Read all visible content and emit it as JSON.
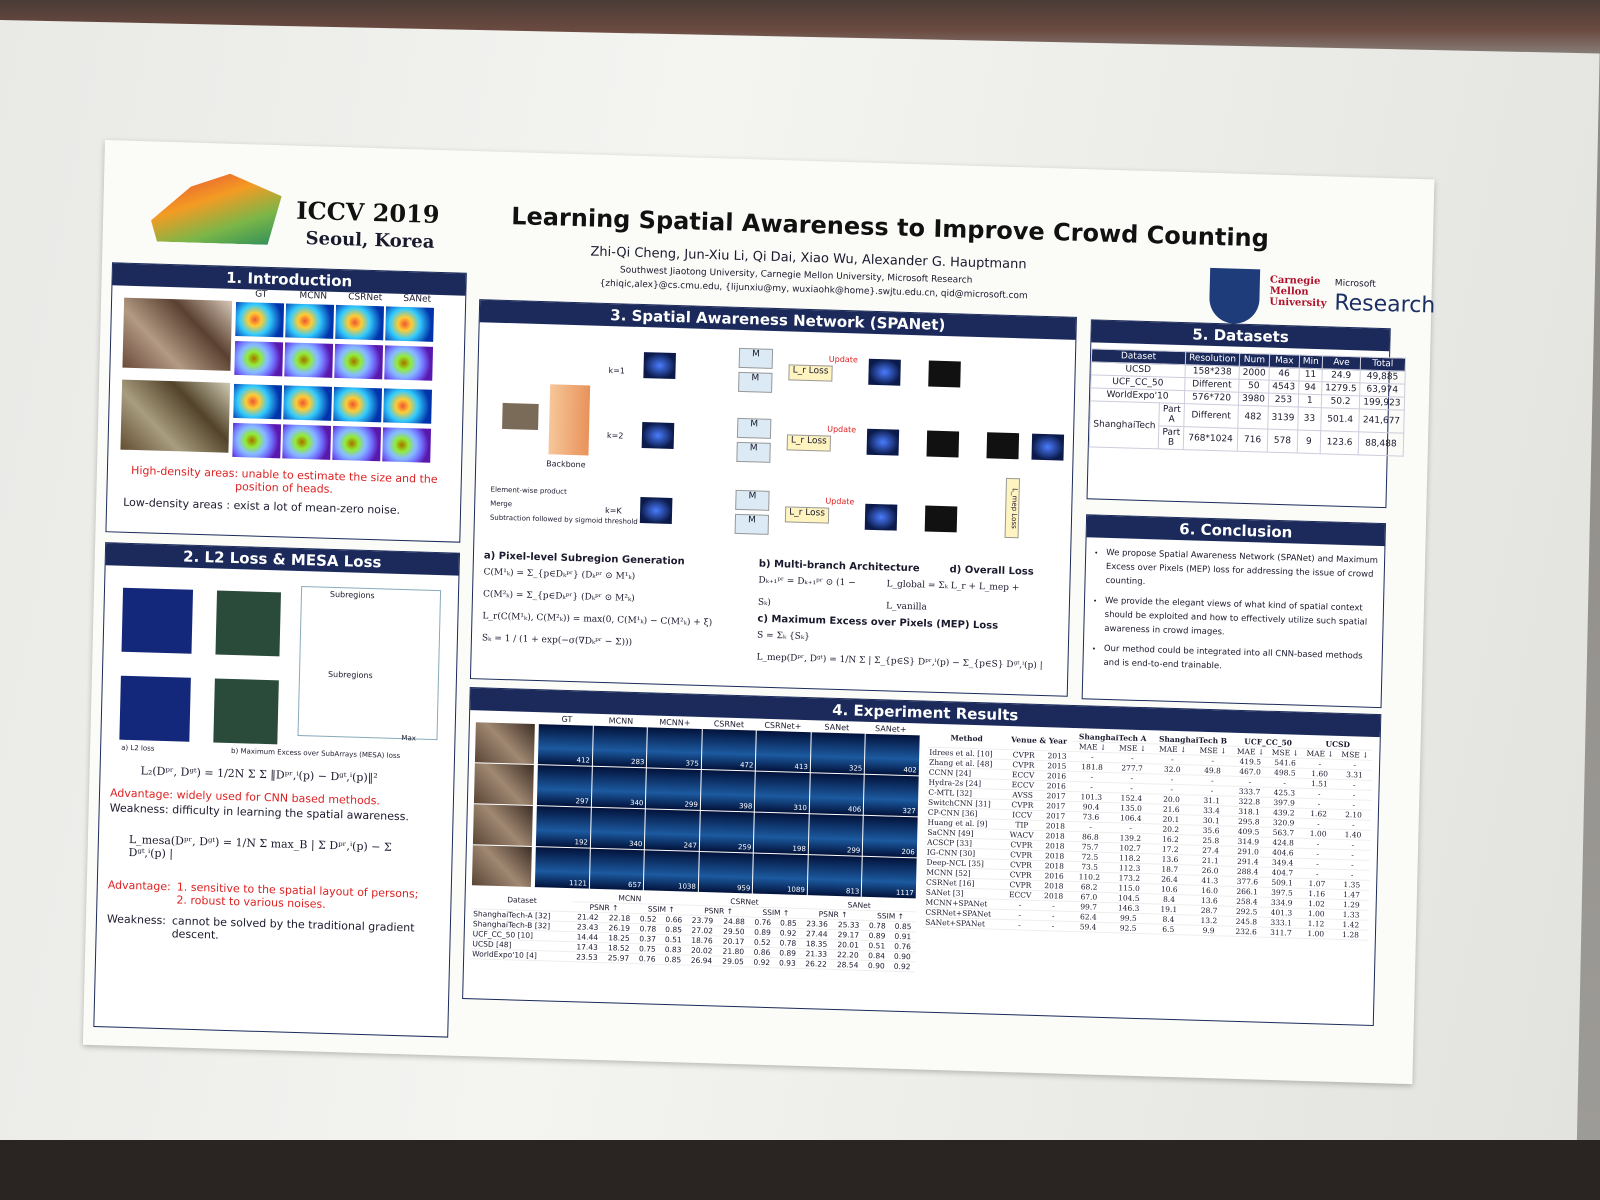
{
  "header": {
    "conference": "ICCV 2019",
    "location": "Seoul, Korea",
    "title": "Learning Spatial Awareness to Improve Crowd Counting",
    "authors": "Zhi-Qi Cheng, Jun-Xiu Li, Qi Dai, Xiao Wu, Alexander G. Hauptmann",
    "affiliations": "Southwest Jiaotong University, Carnegie Mellon University, Microsoft Research",
    "emails": "{zhiqic,alex}@cs.cmu.edu, {lijunxiu@my, wuxiaohk@home}.swjtu.edu.cn, qid@microsoft.com",
    "cmu": "Carnegie Mellon University",
    "microsoft": "Microsoft",
    "research": "Research"
  },
  "introduction": {
    "heading": "1. Introduction",
    "columns": [
      "GT",
      "MCNN",
      "CSRNet",
      "SANet"
    ],
    "high_density": "High-density areas: unable to estimate the size and the position of heads.",
    "low_density": "Low-density areas : exist a lot of mean-zero noise."
  },
  "loss": {
    "heading": "2. L2 Loss & MESA Loss",
    "subregions": "Subregions",
    "max": "Max",
    "caption_a": "a) L2 loss",
    "caption_b": "b) Maximum Excess over SubArrays (MESA) loss",
    "l2_formula": "L₂(Dᵖʳ, Dᵍᵗ) = 1/2N Σ Σ ‖Dᵖʳ,ⁱ(p) − Dᵍᵗ,ⁱ(p)‖²",
    "advantage_label": "Advantage:",
    "advantage_1": "widely used for CNN based methods.",
    "weakness_1": "Weakness: difficulty in learning the spatial awareness.",
    "mesa_formula": "L_mesa(Dᵖʳ, Dᵍᵗ) = 1/N Σ max_B | Σ Dᵖʳ,ⁱ(p) − Σ Dᵍᵗ,ⁱ(p) |",
    "advantage_2a": "1. sensitive to the spatial layout of persons;",
    "advantage_2b": "2. robust to various noises.",
    "weakness_label": "Weakness:",
    "weakness_2": "cannot be solved by the traditional gradient descent."
  },
  "network": {
    "heading": "3. Spatial Awareness Network (SPANet)",
    "backbone": "Backbone",
    "branches": [
      "k=1",
      "k=2",
      "k=K"
    ],
    "loss_box": "L_r Loss",
    "update": "Update",
    "mep_box": "L_mep Loss",
    "legend": [
      "Element-wise product",
      "Merge",
      "Subtraction followed by sigmoid threshold"
    ],
    "section_a": "a) Pixel-level Subregion Generation",
    "formula_a1": "C(M¹ₖ) = Σ_{p∈Dₖᵖʳ} (Dₖᵖʳ ⊙ M¹ₖ)",
    "formula_a2": "C(M²ₖ) = Σ_{p∈Dₖᵖʳ} (Dₖᵖʳ ⊙ M²ₖ)",
    "formula_a3": "L_r(C(M¹ₖ), C(M²ₖ)) = max(0, C(M¹ₖ) − C(M²ₖ) + ξ)",
    "formula_a4": "Sₖ = 1 / (1 + exp(−σ(∇Dₖᵖʳ − Σ)))",
    "section_b": "b) Multi-branch Architecture",
    "formula_b": "Dₖ₊₁ᵖʳ = Dₖ₊₁ᵖʳ ⊙ (1 − Sₖ)",
    "section_c": "c) Maximum Excess over Pixels (MEP) Loss",
    "formula_c1": "S = Σₖ {Sₖ}",
    "formula_c2": "L_mep(Dᵖʳ, Dᵍᵗ) = 1/N Σ | Σ_{p∈S} Dᵖʳ,ⁱ(p) − Σ_{p∈S} Dᵍᵗ,ⁱ(p) |",
    "section_d": "d) Overall Loss",
    "formula_d": "L_global = Σₖ L_r + L_mep + L_vanilla"
  },
  "datasets": {
    "heading": "5. Datasets",
    "columns": [
      "Dataset",
      "Resolution",
      "Num",
      "Max",
      "Min",
      "Ave",
      "Total"
    ],
    "group": "ShanghaiTech",
    "rows": [
      [
        "UCSD",
        "158*238",
        "2000",
        "46",
        "11",
        "24.9",
        "49,885"
      ],
      [
        "UCF_CC_50",
        "Different",
        "50",
        "4543",
        "94",
        "1279.5",
        "63,974"
      ],
      [
        "WorldExpo'10",
        "576*720",
        "3980",
        "253",
        "1",
        "50.2",
        "199,923"
      ],
      [
        "Part A",
        "Different",
        "482",
        "3139",
        "33",
        "501.4",
        "241,677"
      ],
      [
        "Part B",
        "768*1024",
        "716",
        "578",
        "9",
        "123.6",
        "88,488"
      ]
    ]
  },
  "conclusion": {
    "heading": "6. Conclusion",
    "bullets": [
      "We propose Spatial Awareness Network (SPANet) and Maximum Excess over Pixels (MEP) loss for addressing the issue of crowd counting.",
      "We provide the elegant views of what kind of spatial context should be exploited and how to effectively utilize such spatial awareness in crowd images.",
      "Our method could be integrated into all CNN-based methods and is end-to-end trainable."
    ]
  },
  "results": {
    "heading": "4. Experiment Results",
    "image_columns": [
      "GT",
      "MCNN",
      "MCNN+",
      "CSRNet",
      "CSRNet+",
      "SANet",
      "SANet+"
    ],
    "counts": [
      [
        "412",
        "283",
        "375",
        "472",
        "413",
        "325",
        "402"
      ],
      [
        "297",
        "340",
        "299",
        "398",
        "310",
        "406",
        "327"
      ],
      [
        "192",
        "340",
        "247",
        "259",
        "198",
        "299",
        "206"
      ],
      [
        "1121",
        "657",
        "1038",
        "959",
        "1089",
        "813",
        "1117"
      ]
    ],
    "quality_groups": [
      "Dataset",
      "MCNN",
      "CSRNet",
      "SANet"
    ],
    "quality_metrics": [
      "PSNR ↑",
      "SSIM ↑"
    ],
    "quality_rows": [
      [
        "ShanghaiTech-A [32]",
        "21.42",
        "22.18",
        "0.52",
        "0.66",
        "23.79",
        "24.88",
        "0.76",
        "0.85",
        "23.36",
        "25.33",
        "0.78",
        "0.85"
      ],
      [
        "ShanghaiTech-B [32]",
        "23.43",
        "26.19",
        "0.78",
        "0.85",
        "27.02",
        "29.50",
        "0.89",
        "0.92",
        "27.44",
        "29.17",
        "0.89",
        "0.91"
      ],
      [
        "UCF_CC_50 [10]",
        "14.44",
        "18.25",
        "0.37",
        "0.51",
        "18.76",
        "20.17",
        "0.52",
        "0.78",
        "18.35",
        "20.01",
        "0.51",
        "0.76"
      ],
      [
        "UCSD [48]",
        "17.43",
        "18.52",
        "0.75",
        "0.83",
        "20.02",
        "21.80",
        "0.86",
        "0.89",
        "21.33",
        "22.20",
        "0.84",
        "0.90"
      ],
      [
        "WorldExpo'10 [4]",
        "23.53",
        "25.97",
        "0.76",
        "0.85",
        "26.94",
        "29.05",
        "0.92",
        "0.93",
        "26.22",
        "28.54",
        "0.90",
        "0.92"
      ]
    ],
    "compare_head": [
      "Method",
      "Venue & Year",
      "ShanghaiTech A",
      "ShanghaiTech B",
      "UCF_CC_50",
      "UCSD"
    ],
    "compare_metrics": [
      "MAE ↓",
      "MSE ↓"
    ],
    "compare_rows": [
      [
        "Idrees et al. [10]",
        "CVPR",
        "2013",
        "-",
        "-",
        "-",
        "-",
        "419.5",
        "541.6",
        "-",
        "-"
      ],
      [
        "Zhang et al. [48]",
        "CVPR",
        "2015",
        "181.8",
        "277.7",
        "32.0",
        "49.8",
        "467.0",
        "498.5",
        "1.60",
        "3.31"
      ],
      [
        "CCNN [24]",
        "ECCV",
        "2016",
        "-",
        "-",
        "-",
        "-",
        "-",
        "-",
        "1.51",
        "-"
      ],
      [
        "Hydra-2s [24]",
        "ECCV",
        "2016",
        "-",
        "-",
        "-",
        "-",
        "333.7",
        "425.3",
        "-",
        "-"
      ],
      [
        "C-MTL [32]",
        "AVSS",
        "2017",
        "101.3",
        "152.4",
        "20.0",
        "31.1",
        "322.8",
        "397.9",
        "-",
        "-"
      ],
      [
        "SwitchCNN [31]",
        "CVPR",
        "2017",
        "90.4",
        "135.0",
        "21.6",
        "33.4",
        "318.1",
        "439.2",
        "1.62",
        "2.10"
      ],
      [
        "CP-CNN [36]",
        "ICCV",
        "2017",
        "73.6",
        "106.4",
        "20.1",
        "30.1",
        "295.8",
        "320.9",
        "-",
        "-"
      ],
      [
        "Huang et al. [9]",
        "TIP",
        "2018",
        "-",
        "-",
        "20.2",
        "35.6",
        "409.5",
        "563.7",
        "1.00",
        "1.40"
      ],
      [
        "SaCNN [49]",
        "WACV",
        "2018",
        "86.8",
        "139.2",
        "16.2",
        "25.8",
        "314.9",
        "424.8",
        "-",
        "-"
      ],
      [
        "ACSCP [33]",
        "CVPR",
        "2018",
        "75.7",
        "102.7",
        "17.2",
        "27.4",
        "291.0",
        "404.6",
        "-",
        "-"
      ],
      [
        "IG-CNN [30]",
        "CVPR",
        "2018",
        "72.5",
        "118.2",
        "13.6",
        "21.1",
        "291.4",
        "349.4",
        "-",
        "-"
      ],
      [
        "Deep-NCL [35]",
        "CVPR",
        "2018",
        "73.5",
        "112.3",
        "18.7",
        "26.0",
        "288.4",
        "404.7",
        "-",
        "-"
      ],
      [
        "MCNN [52]",
        "CVPR",
        "2016",
        "110.2",
        "173.2",
        "26.4",
        "41.3",
        "377.6",
        "509.1",
        "1.07",
        "1.35"
      ],
      [
        "CSRNet [16]",
        "CVPR",
        "2018",
        "68.2",
        "115.0",
        "10.6",
        "16.0",
        "266.1",
        "397.5",
        "1.16",
        "1.47"
      ],
      [
        "SANet [3]",
        "ECCV",
        "2018",
        "67.0",
        "104.5",
        "8.4",
        "13.6",
        "258.4",
        "334.9",
        "1.02",
        "1.29"
      ],
      [
        "MCNN+SPANet",
        "-",
        "-",
        "99.7",
        "146.3",
        "19.1",
        "28.7",
        "292.5",
        "401.3",
        "1.00",
        "1.33"
      ],
      [
        "CSRNet+SPANet",
        "-",
        "-",
        "62.4",
        "99.5",
        "8.4",
        "13.2",
        "245.8",
        "333.1",
        "1.12",
        "1.42"
      ],
      [
        "SANet+SPANet",
        "-",
        "-",
        "59.4",
        "92.5",
        "6.5",
        "9.9",
        "232.6",
        "311.7",
        "1.00",
        "1.28"
      ]
    ]
  }
}
